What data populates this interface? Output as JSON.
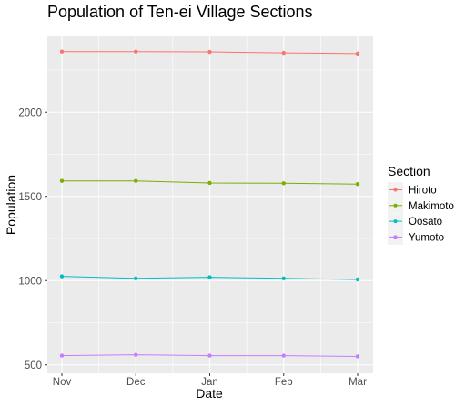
{
  "chart_data": {
    "type": "line",
    "title": "Population of Ten-ei Village Sections",
    "xlabel": "Date",
    "ylabel": "Population",
    "x": [
      "Nov",
      "Dec",
      "Jan",
      "Feb",
      "Mar"
    ],
    "ylim": [
      450,
      2450
    ],
    "yticks": [
      500,
      1000,
      1500,
      2000
    ],
    "ytick_labels": [
      "500",
      "1000",
      "1500",
      "2000"
    ],
    "grid": true,
    "legend": {
      "title": "Section",
      "placement": "right"
    },
    "series": [
      {
        "name": "Hiroto",
        "color": "#F8766D",
        "values": [
          2360,
          2360,
          2358,
          2352,
          2348
        ]
      },
      {
        "name": "Makimoto",
        "color": "#7CAE00",
        "values": [
          1592,
          1592,
          1580,
          1578,
          1573
        ]
      },
      {
        "name": "Oosato",
        "color": "#00BFC4",
        "values": [
          1025,
          1013,
          1020,
          1013,
          1007
        ]
      },
      {
        "name": "Yumoto",
        "color": "#C77CFF",
        "values": [
          555,
          560,
          555,
          555,
          550
        ]
      }
    ]
  }
}
